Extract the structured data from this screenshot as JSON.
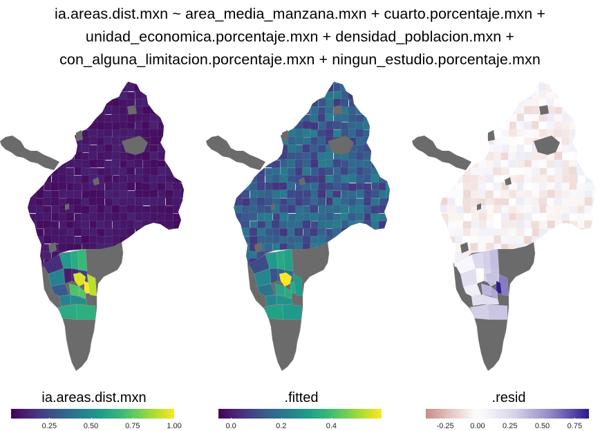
{
  "title_lines": [
    "ia.areas.dist.mxn ~ area_media_manzana.mxn + cuarto.porcentaje.mxn +",
    "unidad_economica.porcentaje.mxn + densidad_poblacion.mxn +",
    "con_alguna_limitacion.porcentaje.mxn + ningun_estudio.porcentaje.mxn"
  ],
  "panels": [
    {
      "id": "observed",
      "legend_title": "ia.areas.dist.mxn",
      "scale": "viridis",
      "min": 0.02,
      "max": 1.0,
      "ticks": [
        {
          "v": 0.25,
          "label": "0.25"
        },
        {
          "v": 0.5,
          "label": "0.50"
        },
        {
          "v": 0.75,
          "label": "0.75"
        },
        {
          "v": 1.0,
          "label": "1.00"
        }
      ],
      "north_base": 0.05,
      "south_values": [
        0.15,
        0.55,
        0.62,
        0.68,
        0.45,
        0.1,
        0.12,
        0.2,
        0.95,
        1.0,
        0.9,
        0.72,
        0.74,
        0.45,
        0.5,
        0.3,
        0.62,
        0.64
      ]
    },
    {
      "id": "fitted",
      "legend_title": ".fitted",
      "scale": "viridis",
      "min": -0.05,
      "max": 0.6,
      "ticks": [
        {
          "v": 0.0,
          "label": "0.0"
        },
        {
          "v": 0.2,
          "label": "0.2"
        },
        {
          "v": 0.4,
          "label": "0.4"
        }
      ],
      "north_base": 0.05,
      "south_values": [
        0.1,
        0.3,
        0.34,
        0.32,
        0.25,
        0.12,
        0.15,
        0.18,
        0.6,
        0.35,
        0.3,
        0.33,
        0.35,
        0.25,
        0.28,
        0.2,
        0.32,
        0.3
      ]
    },
    {
      "id": "resid",
      "legend_title": ".resid",
      "scale": "diverging",
      "min": -0.4,
      "max": 0.86,
      "ticks": [
        {
          "v": -0.25,
          "label": "-0.25"
        },
        {
          "v": 0.0,
          "label": "0.00"
        },
        {
          "v": 0.25,
          "label": "0.25"
        },
        {
          "v": 0.5,
          "label": "0.50"
        },
        {
          "v": 0.75,
          "label": "0.75"
        }
      ],
      "north_base": 0.0,
      "south_values": [
        0.05,
        0.25,
        0.3,
        0.36,
        0.2,
        -0.02,
        0.28,
        0.35,
        0.35,
        0.86,
        0.6,
        0.4,
        0.45,
        0.2,
        0.22,
        0.1,
        0.3,
        0.34
      ]
    }
  ]
}
